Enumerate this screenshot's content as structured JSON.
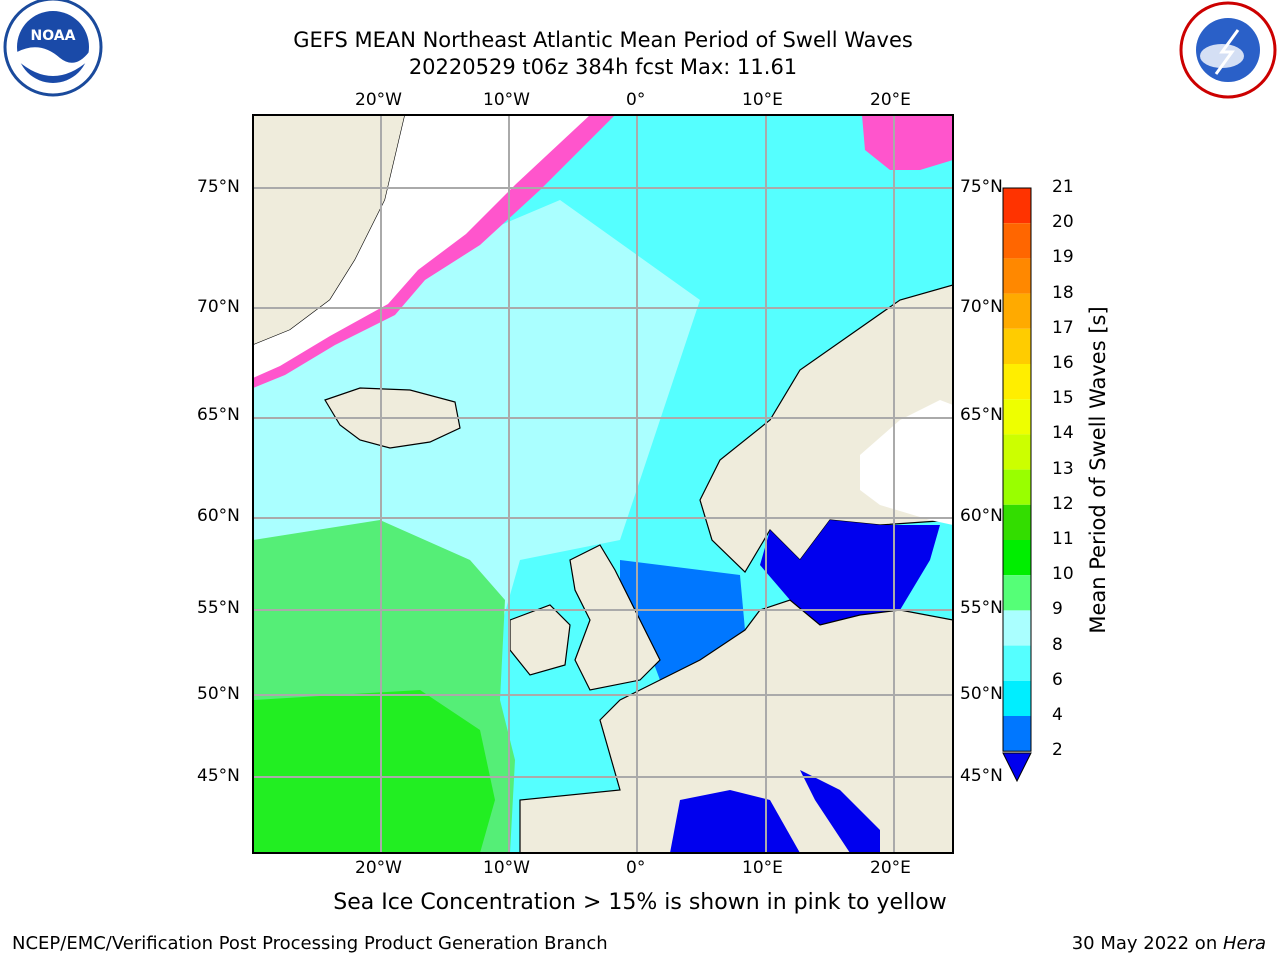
{
  "title": {
    "line1": "GEFS MEAN Northeast Atlantic Mean Period of Swell Waves",
    "line2": "20220529 t06z 384h fcst   Max: 11.61"
  },
  "lon_labels": [
    "20°W",
    "10°W",
    "0°",
    "10°E",
    "20°E"
  ],
  "lat_labels": [
    "75°N",
    "70°N",
    "65°N",
    "60°N",
    "55°N",
    "50°N",
    "45°N"
  ],
  "colorbar": {
    "label": "Mean Period of Swell Waves [s]",
    "ticks": [
      "21",
      "20",
      "19",
      "18",
      "17",
      "16",
      "15",
      "14",
      "13",
      "12",
      "11",
      "10",
      "9",
      "8",
      "6",
      "4",
      "2"
    ],
    "colors": [
      "#ff0000",
      "#ff3300",
      "#ff6600",
      "#ff8800",
      "#ffaa00",
      "#ffcc00",
      "#ffee00",
      "#eeff00",
      "#ccff00",
      "#99ff00",
      "#33dd00",
      "#00ee00",
      "#55ff77",
      "#aaffff",
      "#55ffff",
      "#00eeff",
      "#0077ff",
      "#0000ee"
    ]
  },
  "map_colors": {
    "land": "#efecdc",
    "ocean": "#55ffff",
    "ocean_light": "#aaffff",
    "green": "#55ee77",
    "green_dark": "#00ee00",
    "blue": "#0077ff",
    "blue_dark": "#0000ee",
    "ice_pink": "#ff55cc",
    "ice_yellow": "#ffcc33",
    "grid": "#aaaaaa"
  },
  "footnote": "Sea Ice Concentration > 15% is shown in pink to yellow",
  "credit": "NCEP/EMC/Verification Post Processing Product Generation Branch",
  "date": {
    "text": "30 May 2022 on ",
    "host": "Hera"
  },
  "logos": {
    "noaa": "NOAA",
    "nws": "NATIONAL WEATHER SERVICE"
  }
}
